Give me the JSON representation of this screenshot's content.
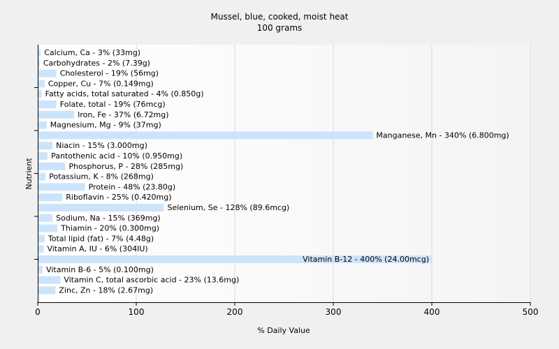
{
  "chart_data": {
    "type": "bar",
    "orientation": "horizontal",
    "title": "Mussel, blue, cooked, moist heat",
    "subtitle": "100 grams",
    "xlabel": "% Daily Value",
    "ylabel": "Nutrient",
    "xlim": [
      0,
      500
    ],
    "xticks": [
      0,
      100,
      200,
      300,
      400,
      500
    ],
    "grid": true,
    "bar_color": "#cce4fb",
    "categories": [
      "Calcium, Ca",
      "Carbohydrates",
      "Cholesterol",
      "Copper, Cu",
      "Fatty acids, total saturated",
      "Folate, total",
      "Iron, Fe",
      "Magnesium, Mg",
      "Manganese, Mn",
      "Niacin",
      "Pantothenic acid",
      "Phosphorus, P",
      "Potassium, K",
      "Protein",
      "Riboflavin",
      "Selenium, Se",
      "Sodium, Na",
      "Thiamin",
      "Total lipid (fat)",
      "Vitamin A, IU",
      "Vitamin B-12",
      "Vitamin B-6",
      "Vitamin C, total ascorbic acid",
      "Zinc, Zn"
    ],
    "values": [
      3,
      2,
      19,
      7,
      4,
      19,
      37,
      9,
      340,
      15,
      10,
      28,
      8,
      48,
      25,
      128,
      15,
      20,
      7,
      6,
      400,
      5,
      23,
      18
    ],
    "labels": [
      "Calcium, Ca - 3% (33mg)",
      "Carbohydrates - 2% (7.39g)",
      "Cholesterol - 19% (56mg)",
      "Copper, Cu - 7% (0.149mg)",
      "Fatty acids, total saturated - 4% (0.850g)",
      "Folate, total - 19% (76mcg)",
      "Iron, Fe - 37% (6.72mg)",
      "Magnesium, Mg - 9% (37mg)",
      "Manganese, Mn - 340% (6.800mg)",
      "Niacin - 15% (3.000mg)",
      "Pantothenic acid - 10% (0.950mg)",
      "Phosphorus, P - 28% (285mg)",
      "Potassium, K - 8% (268mg)",
      "Protein - 48% (23.80g)",
      "Riboflavin - 25% (0.420mg)",
      "Selenium, Se - 128% (89.6mcg)",
      "Sodium, Na - 15% (369mg)",
      "Thiamin - 20% (0.300mg)",
      "Total lipid (fat) - 7% (4.48g)",
      "Vitamin A, IU - 6% (304IU)",
      "Vitamin B-12 - 400% (24.00mcg)",
      "Vitamin B-6 - 5% (0.100mg)",
      "Vitamin C, total ascorbic acid - 23% (13.6mg)",
      "Zinc, Zn - 18% (2.67mg)"
    ]
  }
}
